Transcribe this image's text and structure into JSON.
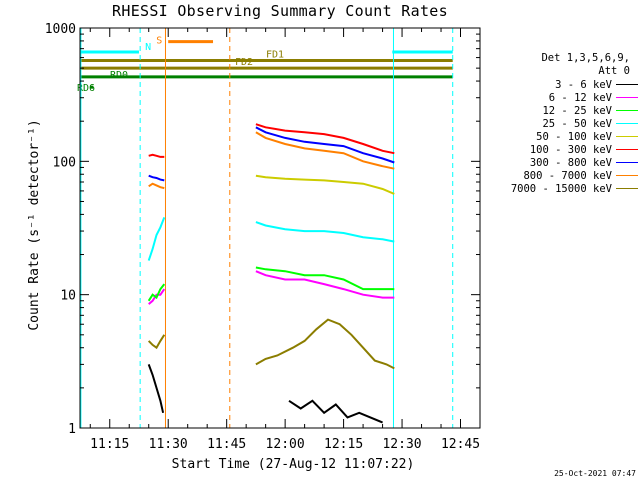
{
  "chart_data": {
    "type": "line",
    "title": "RHESSI Observing Summary Count Rates",
    "xlabel": "Start Time (27-Aug-12 11:07:22)",
    "ylabel": "Count Rate (s⁻¹ detector⁻¹)",
    "yscale": "log",
    "xlim": [
      "11:07:22",
      "12:50:00"
    ],
    "ylim": [
      1,
      1000
    ],
    "x_ticks": [
      "11:15",
      "11:30",
      "11:45",
      "12:00",
      "12:15",
      "12:30",
      "12:45"
    ],
    "x_tick_minutes": [
      15,
      30,
      45,
      60,
      75,
      90,
      105
    ],
    "y_ticks": [
      "1",
      "10",
      "100",
      "1000"
    ],
    "y_tick_values": [
      1,
      10,
      100,
      1000
    ],
    "legend_header": [
      "Det 1,3,5,6,9,",
      "Att 0"
    ],
    "legend_position": "right",
    "series": [
      {
        "name": "3 - 6 keV",
        "color": "#000000",
        "segments": [
          [
            [
              25,
              3
            ],
            [
              26,
              2.5
            ],
            [
              27,
              2
            ],
            [
              28,
              1.6
            ],
            [
              28.7,
              1.3
            ]
          ],
          [
            [
              61,
              1.6
            ],
            [
              64,
              1.4
            ],
            [
              67,
              1.6
            ],
            [
              70,
              1.3
            ],
            [
              73,
              1.5
            ],
            [
              76,
              1.2
            ],
            [
              79,
              1.3
            ],
            [
              85,
              1.1
            ]
          ]
        ]
      },
      {
        "name": "6 - 12 keV",
        "color": "#ff00ff",
        "segments": [
          [
            [
              25,
              8.5
            ],
            [
              26,
              9
            ],
            [
              27,
              10
            ],
            [
              28,
              10
            ],
            [
              29,
              11
            ]
          ],
          [
            [
              52.5,
              15
            ],
            [
              55,
              14
            ],
            [
              60,
              13
            ],
            [
              65,
              13
            ],
            [
              70,
              12
            ],
            [
              75,
              11
            ],
            [
              80,
              10
            ],
            [
              85,
              9.5
            ],
            [
              88,
              9.5
            ]
          ]
        ]
      },
      {
        "name": "12 - 25 keV",
        "color": "#00ff00",
        "segments": [
          [
            [
              25,
              9
            ],
            [
              26,
              10
            ],
            [
              27,
              9.5
            ],
            [
              28,
              11
            ],
            [
              29,
              12
            ]
          ],
          [
            [
              52.5,
              16
            ],
            [
              55,
              15.5
            ],
            [
              60,
              15
            ],
            [
              65,
              14
            ],
            [
              70,
              14
            ],
            [
              75,
              13
            ],
            [
              80,
              11
            ],
            [
              85,
              11
            ],
            [
              88,
              11
            ]
          ]
        ]
      },
      {
        "name": "25 - 50 keV",
        "color": "#00ffff",
        "segments": [
          [
            [
              25,
              18
            ],
            [
              26,
              22
            ],
            [
              27,
              28
            ],
            [
              28,
              32
            ],
            [
              29,
              38
            ]
          ],
          [
            [
              52.5,
              35
            ],
            [
              55,
              33
            ],
            [
              60,
              31
            ],
            [
              65,
              30
            ],
            [
              70,
              30
            ],
            [
              75,
              29
            ],
            [
              80,
              27
            ],
            [
              85,
              26
            ],
            [
              88,
              25
            ]
          ]
        ]
      },
      {
        "name": "50 - 100 keV",
        "color": "#cccc00",
        "segments": [
          [
            [
              52.5,
              78
            ],
            [
              55,
              76
            ],
            [
              60,
              74
            ],
            [
              65,
              73
            ],
            [
              70,
              72
            ],
            [
              75,
              70
            ],
            [
              80,
              68
            ],
            [
              85,
              62
            ],
            [
              88,
              57
            ]
          ]
        ]
      },
      {
        "name": "100 - 300 keV",
        "color": "#ff0000",
        "segments": [
          [
            [
              25,
              110
            ],
            [
              26,
              112
            ],
            [
              27,
              110
            ],
            [
              28,
              108
            ],
            [
              29,
              108
            ]
          ],
          [
            [
              52.5,
              190
            ],
            [
              55,
              180
            ],
            [
              60,
              170
            ],
            [
              65,
              165
            ],
            [
              70,
              160
            ],
            [
              75,
              150
            ],
            [
              80,
              135
            ],
            [
              85,
              120
            ],
            [
              88,
              115
            ]
          ]
        ]
      },
      {
        "name": "300 - 800 keV",
        "color": "#0000ff",
        "segments": [
          [
            [
              25,
              78
            ],
            [
              26,
              76
            ],
            [
              27,
              75
            ],
            [
              28,
              73
            ],
            [
              29,
              72
            ]
          ],
          [
            [
              52.5,
              180
            ],
            [
              55,
              165
            ],
            [
              60,
              150
            ],
            [
              65,
              140
            ],
            [
              70,
              135
            ],
            [
              75,
              130
            ],
            [
              80,
              115
            ],
            [
              85,
              105
            ],
            [
              88,
              98
            ]
          ]
        ]
      },
      {
        "name": "800 - 7000 keV",
        "color": "#ff8000",
        "segments": [
          [
            [
              25,
              65
            ],
            [
              26,
              68
            ],
            [
              27,
              66
            ],
            [
              28,
              64
            ],
            [
              29,
              63
            ]
          ],
          [
            [
              52.5,
              165
            ],
            [
              55,
              150
            ],
            [
              60,
              135
            ],
            [
              65,
              125
            ],
            [
              70,
              120
            ],
            [
              75,
              115
            ],
            [
              80,
              100
            ],
            [
              85,
              92
            ],
            [
              88,
              88
            ]
          ]
        ]
      },
      {
        "name": "7000 - 15000 keV",
        "color": "#8b7d00",
        "segments": [
          [
            [
              25,
              4.5
            ],
            [
              26,
              4.2
            ],
            [
              27,
              4
            ],
            [
              28,
              4.5
            ],
            [
              29,
              5
            ]
          ],
          [
            [
              52.5,
              3
            ],
            [
              55,
              3.3
            ],
            [
              58,
              3.5
            ],
            [
              62,
              4
            ],
            [
              65,
              4.5
            ],
            [
              68,
              5.5
            ],
            [
              71,
              6.5
            ],
            [
              74,
              6
            ],
            [
              77,
              5
            ],
            [
              80,
              4
            ],
            [
              83,
              3.2
            ],
            [
              86,
              3
            ],
            [
              88,
              2.8
            ]
          ]
        ]
      }
    ],
    "flag_bars": [
      {
        "label": "S",
        "color": "#ff8000",
        "from": 30,
        "to": 41.5,
        "level": 790
      },
      {
        "label": "N",
        "color": "#00ffff",
        "from": 7.37,
        "to": 22.5,
        "level": 660
      },
      {
        "label": "N",
        "color": "#00ffff",
        "from": 87.5,
        "to": 103,
        "level": 660
      },
      {
        "label": "FD1",
        "color": "#8b7d00",
        "from": 7.37,
        "to": 103,
        "level": 570
      },
      {
        "label": "FD2",
        "color": "#8b7d00",
        "from": 7.37,
        "to": 103,
        "level": 500
      },
      {
        "label": "RD0",
        "color": "#008000",
        "from": 7.37,
        "to": 103,
        "level": 430
      },
      {
        "label": "RD6",
        "color": "#008000",
        "from": 10,
        "to": 10.8,
        "level": 360
      }
    ],
    "vertical_lines": [
      {
        "x": 7.6,
        "color": "#00ffff",
        "style": "solid"
      },
      {
        "x": 22.8,
        "color": "#00ffff",
        "style": "dashed"
      },
      {
        "x": 29.3,
        "color": "#ff8000",
        "style": "solid"
      },
      {
        "x": 45.8,
        "color": "#ff8000",
        "style": "dashed"
      },
      {
        "x": 87.8,
        "color": "#00ffff",
        "style": "solid"
      },
      {
        "x": 103,
        "color": "#00ffff",
        "style": "dashed"
      }
    ]
  },
  "footer": {
    "timestamp": "25-Oct-2021 07:47"
  }
}
